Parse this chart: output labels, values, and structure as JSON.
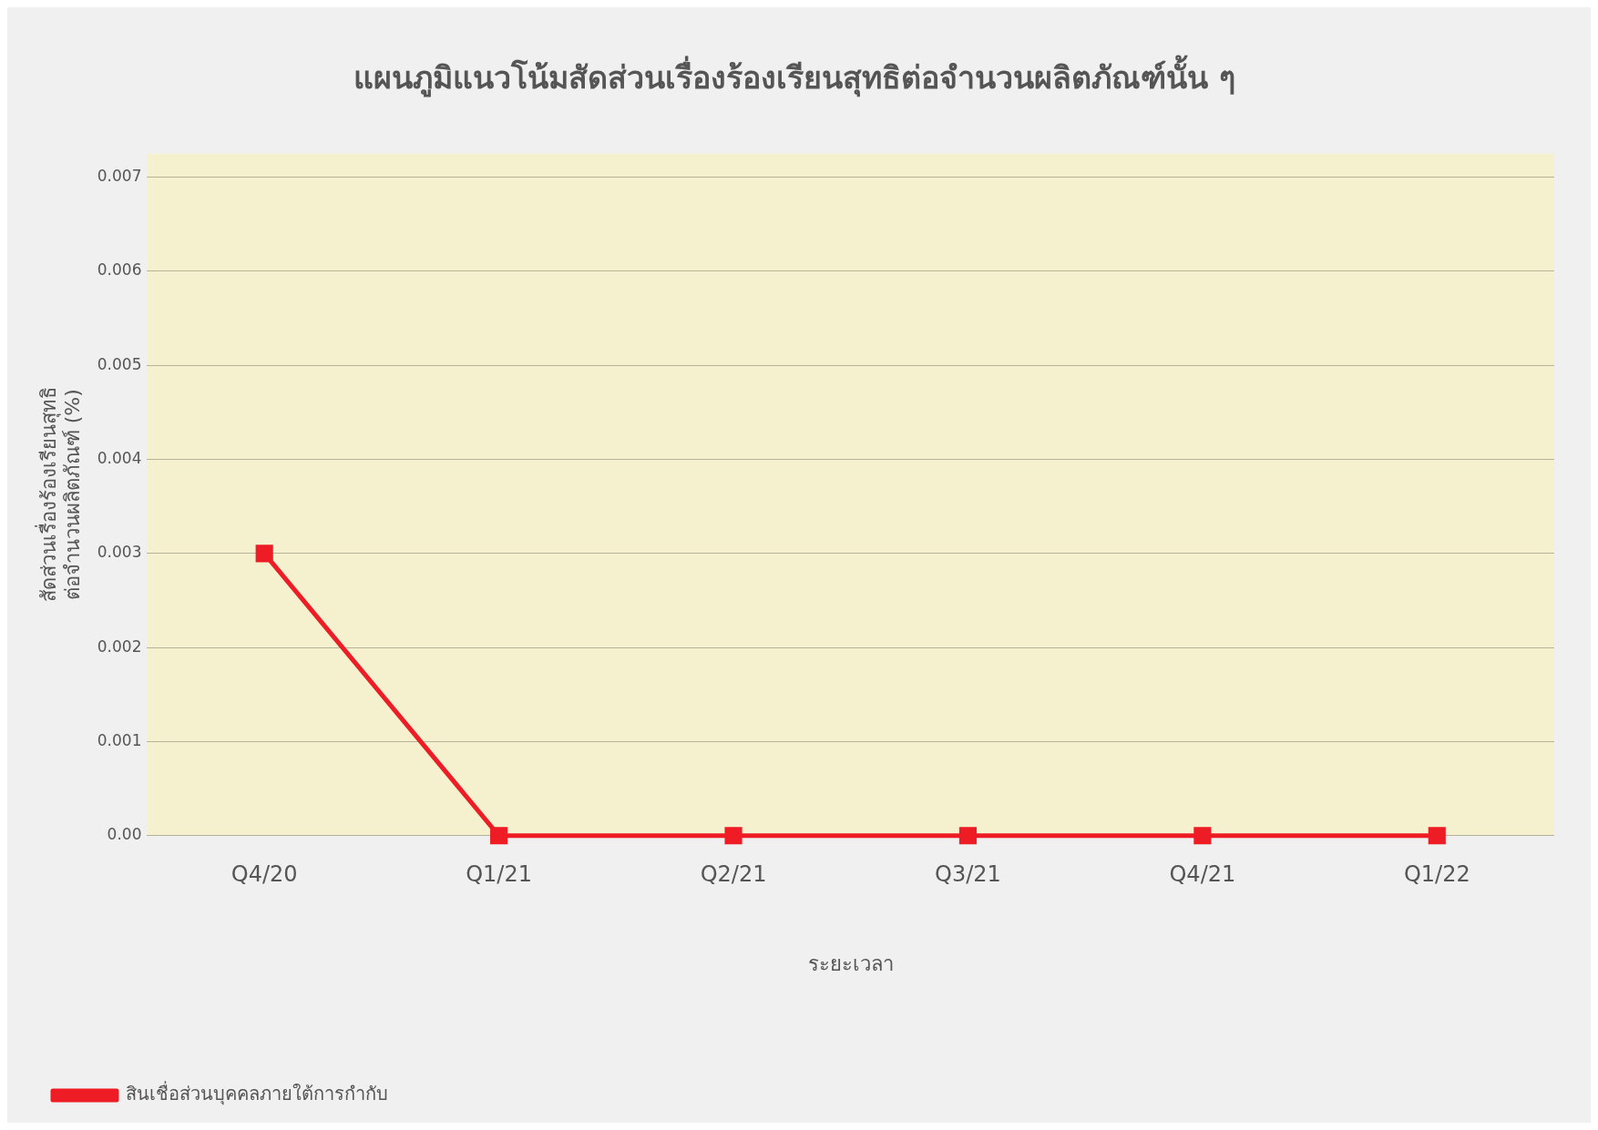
{
  "chart_data": {
    "type": "line",
    "title": "แผนภูมิแนวโน้มสัดส่วนเรื่องร้องเรียนสุทธิต่อจำนวนผลิตภัณฑ์นั้น ๆ",
    "xlabel": "ระยะเวลา",
    "ylabel": "สัดส่วนเรื่องร้องเรียนสุทธิ\nต่อจำนวนผลิตภัณฑ์ (%)",
    "categories": [
      "Q4/20",
      "Q1/21",
      "Q2/21",
      "Q3/21",
      "Q4/21",
      "Q1/22"
    ],
    "series": [
      {
        "name": "สินเชื่อส่วนบุคคลภายใต้การกำกับ",
        "color": "#ee1c25",
        "values": [
          0.003,
          0,
          0,
          0,
          0,
          0
        ]
      }
    ],
    "ylim": [
      0,
      0.00725
    ],
    "yticks": [
      {
        "value": 0,
        "label": "0.00"
      },
      0.001,
      0.002,
      0.003,
      0.004,
      0.005,
      0.006,
      0.007
    ],
    "grid": "y",
    "legend": "bottom left",
    "marker": "square",
    "line_style": "solid"
  }
}
